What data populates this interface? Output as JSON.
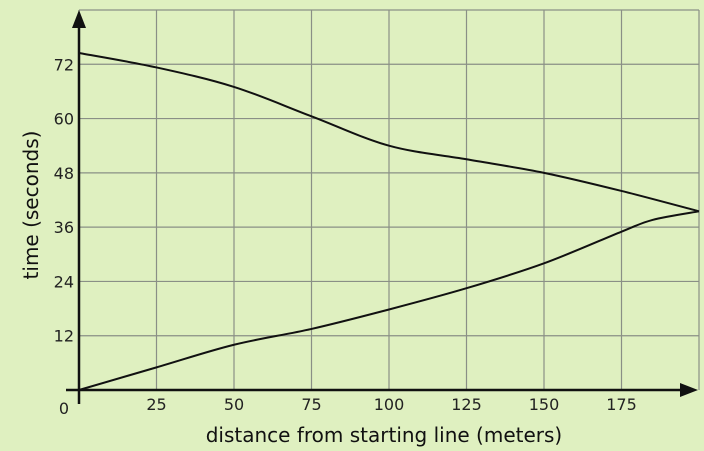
{
  "chart_data": {
    "type": "line",
    "title": "",
    "xlabel": "distance from starting line (meters)",
    "ylabel": "time (seconds)",
    "xlim": [
      0,
      200
    ],
    "ylim": [
      0,
      84
    ],
    "grid": true,
    "origin_label": "0",
    "x_ticks": [
      25,
      50,
      75,
      100,
      125,
      150,
      175
    ],
    "y_ticks": [
      12,
      24,
      36,
      48,
      60,
      72
    ],
    "x_grid": [
      0,
      25,
      50,
      75,
      100,
      125,
      150,
      175,
      200
    ],
    "y_grid": [
      12,
      24,
      36,
      48,
      60,
      72,
      84
    ],
    "series": [
      {
        "x": [
          0,
          25,
          50,
          75,
          100,
          125,
          150,
          175,
          200
        ],
        "y": [
          74.5,
          71.3,
          67,
          60.5,
          54,
          51,
          48,
          44,
          39.5
        ]
      },
      {
        "x": [
          0,
          25,
          50,
          75,
          100,
          125,
          150,
          175,
          185,
          200
        ],
        "y": [
          0,
          5,
          10,
          13.5,
          17.8,
          22.5,
          28,
          35,
          37.6,
          39.5
        ]
      }
    ],
    "colors": {
      "background": "#dff0c0",
      "grid": "#8a8f86",
      "line": "#111111"
    }
  }
}
